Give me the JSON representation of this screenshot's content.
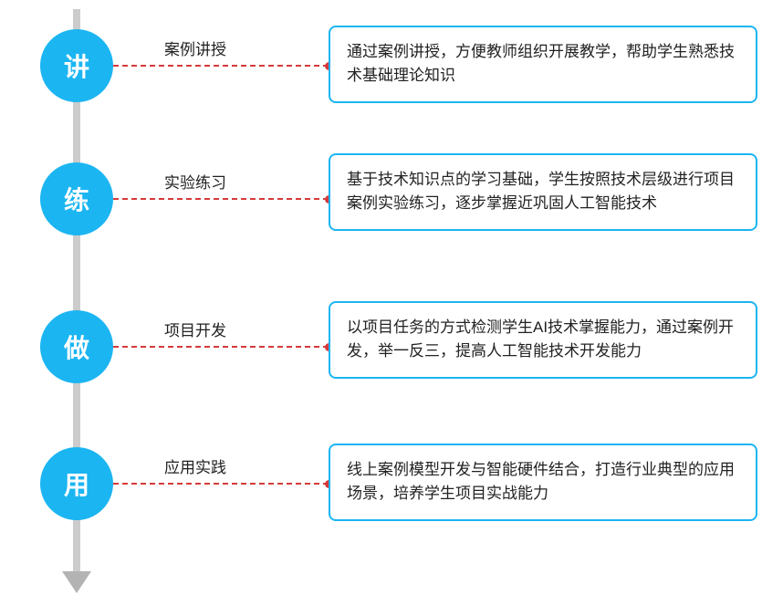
{
  "diagram": {
    "type": "flowchart",
    "background_color": "#ffffff",
    "arrow_color": "#cccccc",
    "arrow_head_color": "#b3b3b3",
    "circle_fill": "#1bb5f2",
    "circle_text_color": "#ffffff",
    "circle_fontsize": 28,
    "circle_fontweight": 700,
    "circle_diameter": 80,
    "connector_color": "#d63a3a",
    "connector_dash": "dashed",
    "label_fontsize": 17,
    "label_color": "#222222",
    "box_border_color": "#1bb5f2",
    "box_border_radius": 8,
    "box_border_width": 2,
    "box_text_color": "#222222",
    "box_fontsize": 17,
    "stage_tops": [
      32,
      178,
      340,
      490
    ],
    "box_offsets": [
      -4,
      -10,
      -10,
      -4
    ]
  },
  "stages": [
    {
      "circle": "讲",
      "label": "案例讲授",
      "description": "通过案例讲授，方便教师组织开展教学，帮助学生熟悉技术基础理论知识"
    },
    {
      "circle": "练",
      "label": "实验练习",
      "description": "基于技术知识点的学习基础，学生按照技术层级进行项目案例实验练习，逐步掌握近巩固人工智能技术"
    },
    {
      "circle": "做",
      "label": "项目开发",
      "description": "以项目任务的方式检测学生AI技术掌握能力，通过案例开发，举一反三，提高人工智能技术开发能力"
    },
    {
      "circle": "用",
      "label": "应用实践",
      "description": "线上案例模型开发与智能硬件结合，打造行业典型的应用场景，培养学生项目实战能力"
    }
  ]
}
